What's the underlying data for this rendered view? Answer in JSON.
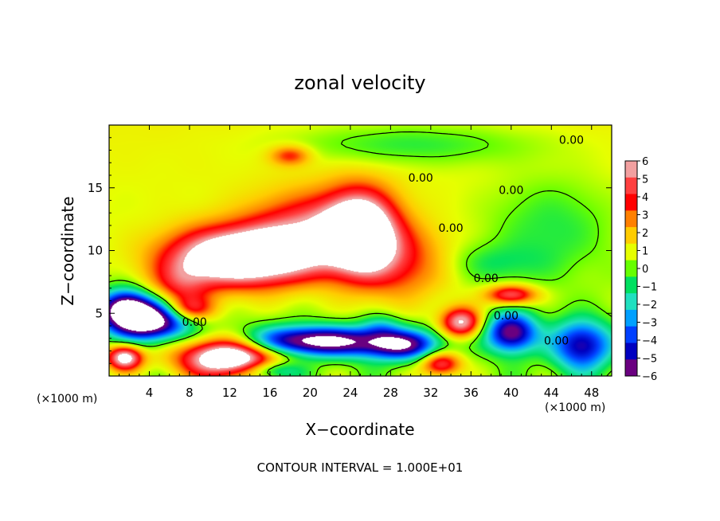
{
  "chart_data": {
    "type": "heatmap",
    "title": "zonal velocity",
    "xlabel": "X−coordinate",
    "ylabel": "Z−coordinate",
    "x_unit_label": "(×1000 m)",
    "xlim": [
      0,
      50
    ],
    "ylim": [
      0,
      20
    ],
    "x_ticks": [
      4,
      8,
      12,
      16,
      20,
      24,
      28,
      32,
      36,
      40,
      44,
      48
    ],
    "x_tick_labels": [
      "4",
      "8",
      "12",
      "16",
      "20",
      "24",
      "28",
      "32",
      "36",
      "40",
      "44",
      "48"
    ],
    "y_ticks": [
      5,
      10,
      15
    ],
    "y_tick_labels": [
      "5",
      "10",
      "15"
    ],
    "colorbar": {
      "min": -6,
      "max": 6,
      "ticks": [
        6,
        5,
        4,
        3,
        2,
        1,
        0,
        -1,
        -2,
        -3,
        -4,
        -5,
        -6
      ],
      "tick_labels": [
        "6",
        "5",
        "4",
        "3",
        "2",
        "1",
        "0",
        "−1",
        "−2",
        "−3",
        "−4",
        "−5",
        "−6"
      ],
      "colors": [
        "#f2a0a0",
        "#ff4040",
        "#ff0000",
        "#ff8000",
        "#ffcc00",
        "#e6ff00",
        "#66ff00",
        "#00e060",
        "#20e0c0",
        "#00a0ff",
        "#0040ff",
        "#0000c0",
        "#6a0080"
      ],
      "saturation_high_color": "#ffffff"
    },
    "contour_interval_text": "CONTOUR INTERVAL = 1.000E+01",
    "contour_label": "0.00",
    "contour_label_positions": [
      [
        31,
        15.5
      ],
      [
        46,
        18.5
      ],
      [
        40,
        14.5
      ],
      [
        8.5,
        4.0
      ],
      [
        34,
        11.5
      ],
      [
        37.5,
        7.5
      ],
      [
        39.5,
        4.5
      ],
      [
        44.5,
        2.5
      ]
    ],
    "features": [
      {
        "x": 13,
        "z": 9.5,
        "strength": 9,
        "rx": 7,
        "rz": 2.3
      },
      {
        "x": 25,
        "z": 11.5,
        "strength": 8,
        "rx": 3.5,
        "rz": 3.2
      },
      {
        "x": 20,
        "z": 11.5,
        "strength": 4.5,
        "rx": 6,
        "rz": 3
      },
      {
        "x": 29,
        "z": 9,
        "strength": 3,
        "rx": 5,
        "rz": 3
      },
      {
        "x": 7,
        "z": 7,
        "strength": 3,
        "rx": 3,
        "rz": 2
      },
      {
        "x": 8,
        "z": 5.3,
        "strength": 4,
        "rx": 2.5,
        "rz": 1
      },
      {
        "x": 12,
        "z": 1.5,
        "strength": 9,
        "rx": 5,
        "rz": 1.6
      },
      {
        "x": 1.5,
        "z": 1.5,
        "strength": 7,
        "rx": 1.8,
        "rz": 1
      },
      {
        "x": 35,
        "z": 4.3,
        "strength": 6,
        "rx": 2,
        "rz": 1.2
      },
      {
        "x": 33,
        "z": 1,
        "strength": 5,
        "rx": 2,
        "rz": 1
      },
      {
        "x": 40,
        "z": 6.5,
        "strength": 5,
        "rx": 2.5,
        "rz": 0.8
      },
      {
        "x": 18,
        "z": 17.6,
        "strength": 3,
        "rx": 2,
        "rz": 0.8
      },
      {
        "x": 4,
        "z": 4.5,
        "strength": -9,
        "rx": 4,
        "rz": 1.6
      },
      {
        "x": 1.5,
        "z": 5.5,
        "strength": -6,
        "rx": 2.5,
        "rz": 1.5
      },
      {
        "x": 20,
        "z": 2.8,
        "strength": -8,
        "rx": 7,
        "rz": 1.2
      },
      {
        "x": 29,
        "z": 2.5,
        "strength": -6,
        "rx": 4,
        "rz": 1.2
      },
      {
        "x": 40,
        "z": 3.5,
        "strength": -7,
        "rx": 2.5,
        "rz": 1.6
      },
      {
        "x": 47,
        "z": 2.5,
        "strength": -6,
        "rx": 3,
        "rz": 2
      },
      {
        "x": 16,
        "z": 0.5,
        "strength": -4,
        "rx": 3,
        "rz": 0.8
      },
      {
        "x": 30,
        "z": 18.5,
        "strength": -1.8,
        "rx": 12,
        "rz": 1.6
      },
      {
        "x": 44,
        "z": 12,
        "strength": -1.6,
        "rx": 6,
        "rz": 4
      },
      {
        "x": 38,
        "z": 9,
        "strength": -1.4,
        "rx": 5,
        "rz": 1.6
      },
      {
        "x": 27,
        "z": 4,
        "strength": -2,
        "rx": 2,
        "rz": 1
      }
    ]
  }
}
